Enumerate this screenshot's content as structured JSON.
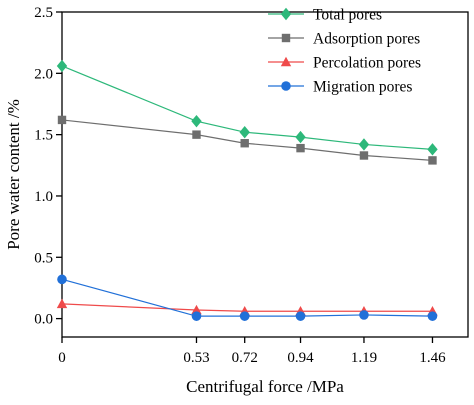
{
  "chart_data": {
    "type": "line",
    "xlabel": "Centrifugal force /MPa",
    "ylabel": "Pore water content /%",
    "x": [
      0,
      0.53,
      0.72,
      0.94,
      1.19,
      1.46
    ],
    "x_tick_labels": [
      "0",
      "0.53",
      "0.72",
      "0.94",
      "1.19",
      "1.46"
    ],
    "ylim": [
      -0.15,
      2.5
    ],
    "y_ticks": [
      0.0,
      0.5,
      1.0,
      1.5,
      2.0,
      2.5
    ],
    "y_tick_labels": [
      "0.0",
      "0.5",
      "1.0",
      "1.5",
      "2.0",
      "2.5"
    ],
    "grid": false,
    "legend_position": "top-right",
    "series": [
      {
        "name": "Total pores",
        "color": "#2db87a",
        "marker": "diamond",
        "values": [
          2.06,
          1.61,
          1.52,
          1.48,
          1.42,
          1.38
        ]
      },
      {
        "name": "Adsorption pores",
        "color": "#6e6e6e",
        "marker": "square",
        "values": [
          1.62,
          1.5,
          1.43,
          1.39,
          1.33,
          1.29
        ]
      },
      {
        "name": "Percolation pores",
        "color": "#ef4a4a",
        "marker": "triangle",
        "values": [
          0.12,
          0.07,
          0.06,
          0.06,
          0.06,
          0.06
        ]
      },
      {
        "name": "Migration pores",
        "color": "#2170d8",
        "marker": "circle",
        "values": [
          0.32,
          0.02,
          0.02,
          0.02,
          0.03,
          0.02
        ]
      }
    ]
  }
}
